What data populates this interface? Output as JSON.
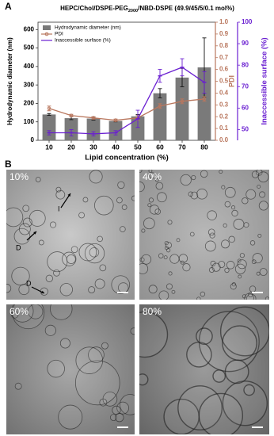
{
  "chart_data": {
    "type": "bar-line",
    "panel_label": "A",
    "title_parts": [
      "HEPC/Chol/DSPE-PEG",
      "2000",
      "/NBD-DSPE (49.9/45/5/0.1 mol%)"
    ],
    "xlabel": "Lipid concentration (%)",
    "ylabel": "Hydrodynamic diameter (nm)",
    "y2label": "PDI",
    "y3label": "Inaccessible surface (%)",
    "categories": [
      "10",
      "20",
      "30",
      "40",
      "50",
      "60",
      "70",
      "80"
    ],
    "ylim": [
      0,
      640
    ],
    "yticks": [
      0,
      100,
      200,
      300,
      400,
      500,
      600
    ],
    "y2lim": [
      0.0,
      1.0
    ],
    "y2ticks": [
      {
        "value": 0,
        "label": "0.0"
      },
      0.1,
      0.2,
      0.3,
      0.4,
      0.5,
      0.6,
      0.7,
      0.8,
      0.9,
      {
        "value": 1,
        "label": "1.0"
      }
    ],
    "y3lim": [
      45,
      100
    ],
    "y3ticks": [
      50,
      60,
      70,
      80,
      90,
      100
    ],
    "series": [
      {
        "name": "Hydrodynamic diameter (nm)",
        "kind": "bar",
        "color": "#7a7a7a",
        "axis": "y",
        "values": [
          140,
          120,
          118,
          105,
          130,
          255,
          340,
          395
        ],
        "errors": [
          5,
          8,
          8,
          5,
          10,
          25,
          50,
          160
        ]
      },
      {
        "name": "PDI",
        "kind": "line",
        "color": "#b9775e",
        "axis": "y2",
        "values": [
          0.27,
          0.21,
          0.19,
          0.17,
          0.19,
          0.29,
          0.33,
          0.35
        ],
        "errors": [
          0.02,
          0.01,
          0.01,
          0.01,
          0.02,
          0.02,
          0.02,
          0.02
        ]
      },
      {
        "name": "Inaccessible surface (%)",
        "kind": "line",
        "color": "#6a1fd1",
        "axis": "y3",
        "values": [
          48.5,
          48.5,
          48,
          48.5,
          55,
          75,
          79,
          72
        ],
        "errors": [
          1,
          1.5,
          1,
          1,
          4,
          3,
          4,
          5
        ]
      }
    ]
  },
  "panel_b": {
    "label": "B",
    "images": [
      {
        "label": "10%",
        "annotations": [
          "I",
          "D",
          "D"
        ]
      },
      {
        "label": "40%"
      },
      {
        "label": "60%"
      },
      {
        "label": "80%"
      }
    ]
  }
}
